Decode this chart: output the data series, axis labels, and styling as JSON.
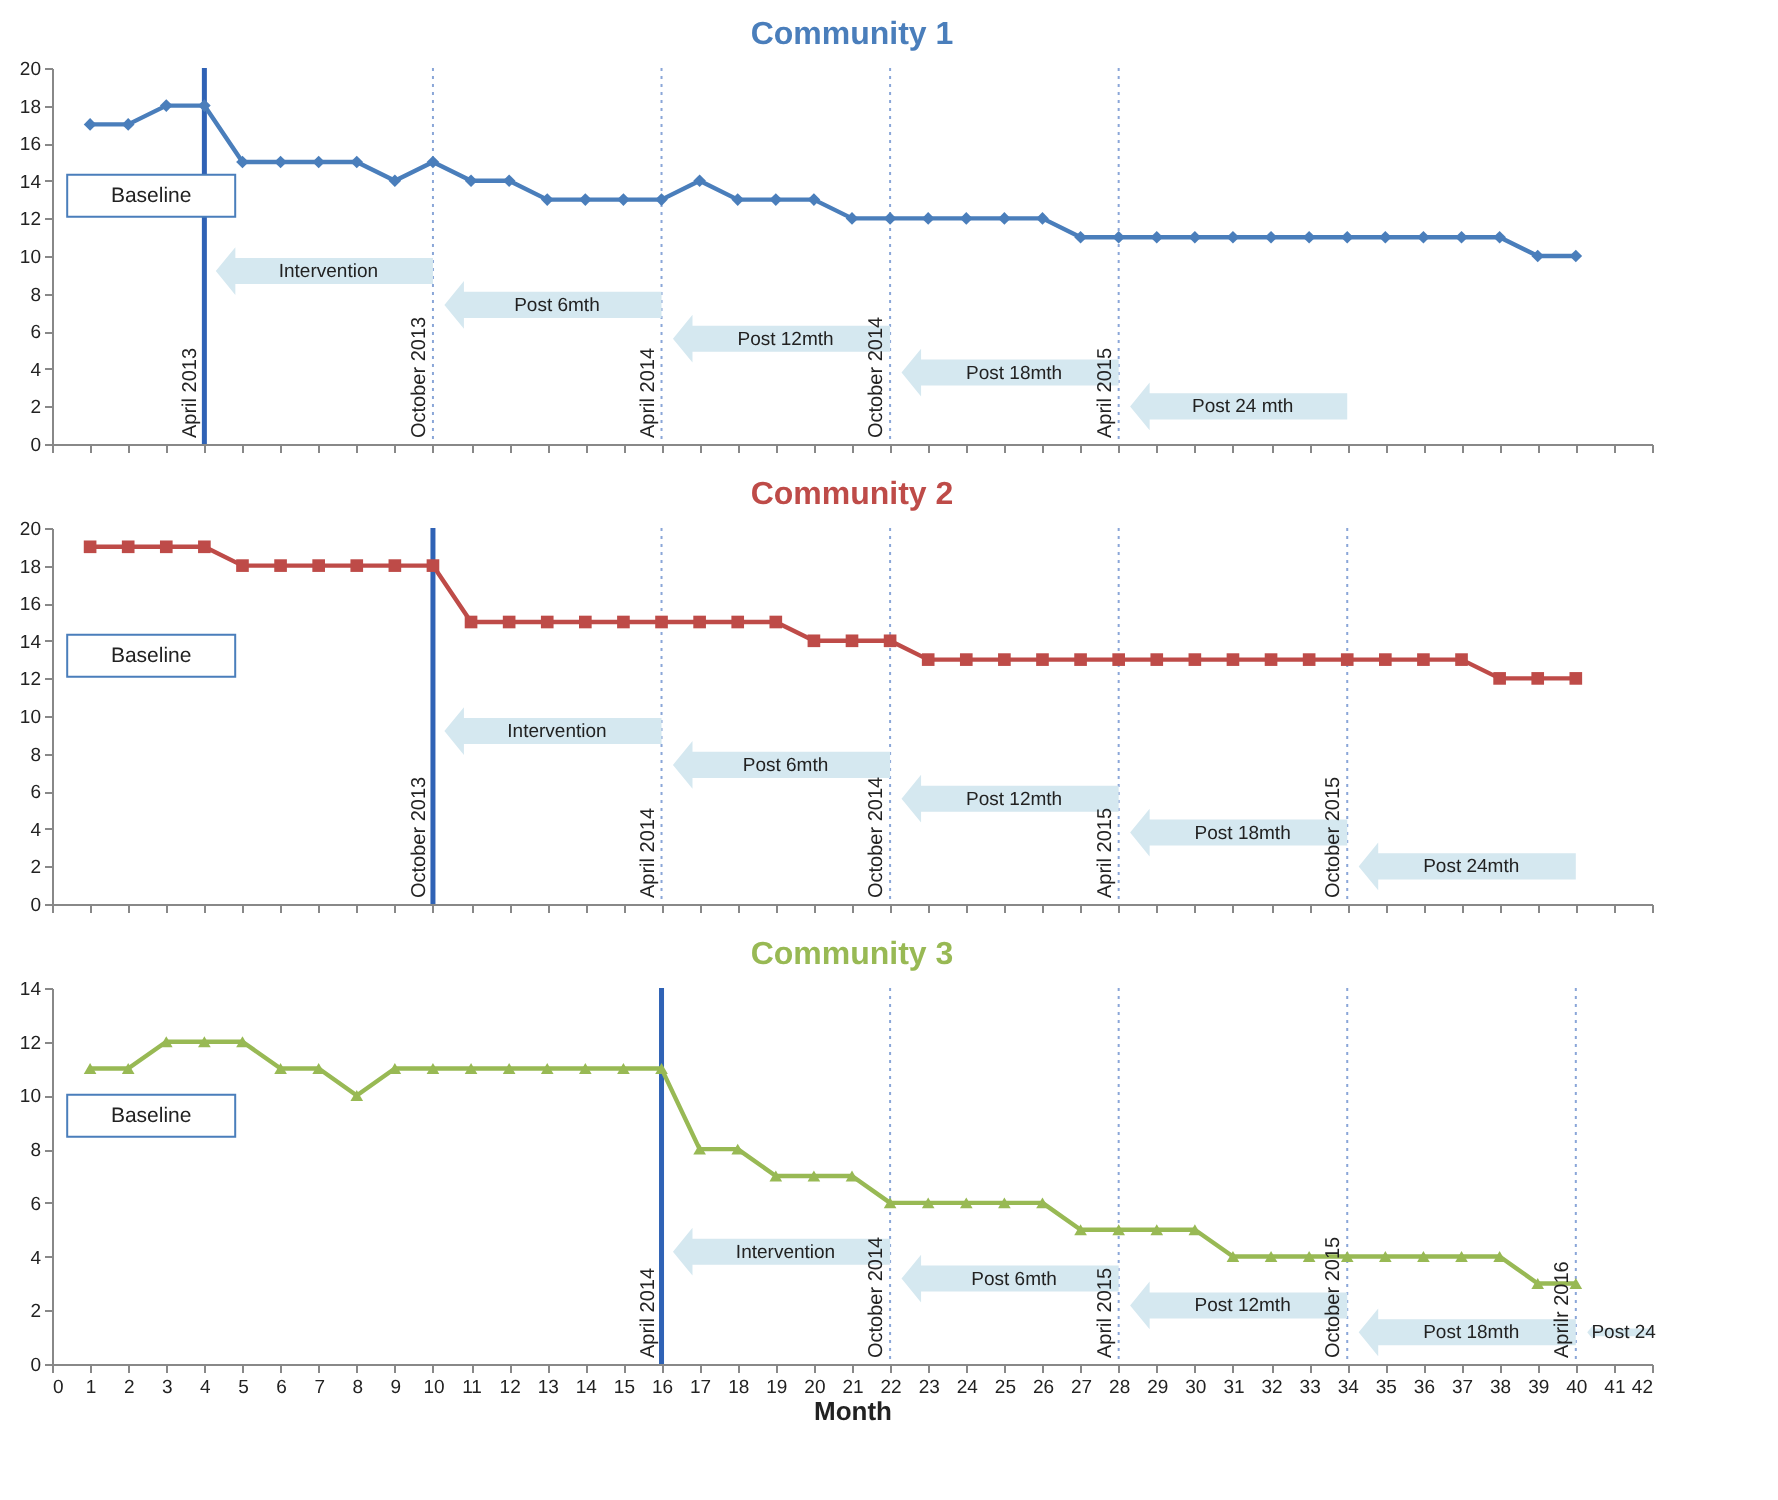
{
  "chart_data": [
    {
      "type": "line",
      "title": "Community 1",
      "marker": "diamond",
      "line_style": "solid",
      "tick_labels": "y",
      "x": [
        1,
        2,
        3,
        4,
        5,
        6,
        7,
        8,
        9,
        10,
        11,
        12,
        13,
        14,
        15,
        16,
        17,
        18,
        19,
        20,
        21,
        22,
        23,
        24,
        25,
        26,
        27,
        28,
        29,
        30,
        31,
        32,
        33,
        34,
        35,
        36,
        37,
        38,
        39,
        40
      ],
      "series": [
        {
          "color": "#4a7ebb",
          "values": [
            17,
            17,
            18,
            18,
            15,
            15,
            15,
            15,
            14,
            15,
            14,
            14,
            13,
            13,
            13,
            13,
            14,
            13,
            13,
            13,
            12,
            12,
            12,
            12,
            12,
            12,
            11,
            11,
            11,
            11,
            11,
            11,
            11,
            11,
            11,
            11,
            11,
            11,
            10,
            10
          ]
        }
      ],
      "xlim": [
        0,
        42
      ],
      "xticks": [
        0,
        1,
        2,
        3,
        4,
        5,
        6,
        7,
        8,
        9,
        10,
        11,
        12,
        13,
        14,
        15,
        16,
        17,
        18,
        19,
        20,
        21,
        22,
        23,
        24,
        25,
        26,
        27,
        28,
        29,
        30,
        31,
        32,
        33,
        34,
        35,
        36,
        37,
        38,
        39,
        40,
        41,
        42
      ],
      "ylim": [
        0,
        20
      ],
      "yticks": [
        0,
        2,
        4,
        6,
        8,
        10,
        12,
        14,
        16,
        18,
        20
      ],
      "ref_lines": [
        {
          "axis": "x",
          "value": 4,
          "label": "April 2013",
          "color": "#2f62b5",
          "line_style": "solid"
        },
        {
          "axis": "x",
          "value": 10,
          "label": "October 2013",
          "color": "#8aa6d8",
          "line_style": "dotted"
        },
        {
          "axis": "x",
          "value": 16,
          "label": "April 2014",
          "color": "#8aa6d8",
          "line_style": "dotted"
        },
        {
          "axis": "x",
          "value": 22,
          "label": "October 2014",
          "color": "#8aa6d8",
          "line_style": "dotted"
        },
        {
          "axis": "x",
          "value": 28,
          "label": "April 2015",
          "color": "#8aa6d8",
          "line_style": "dotted"
        }
      ],
      "annotations": [
        "Baseline",
        "Intervention",
        "Post 6mth",
        "Post 12mth",
        "Post 18mth",
        "Post 24 mth"
      ]
    },
    {
      "type": "line",
      "title": "Community 2",
      "marker": "square",
      "line_style": "solid",
      "tick_labels": "y",
      "x": [
        1,
        2,
        3,
        4,
        5,
        6,
        7,
        8,
        9,
        10,
        11,
        12,
        13,
        14,
        15,
        16,
        17,
        18,
        19,
        20,
        21,
        22,
        23,
        24,
        25,
        26,
        27,
        28,
        29,
        30,
        31,
        32,
        33,
        34,
        35,
        36,
        37,
        38,
        39,
        40
      ],
      "series": [
        {
          "color": "#be4b48",
          "values": [
            19,
            19,
            19,
            19,
            18,
            18,
            18,
            18,
            18,
            18,
            15,
            15,
            15,
            15,
            15,
            15,
            15,
            15,
            15,
            14,
            14,
            14,
            13,
            13,
            13,
            13,
            13,
            13,
            13,
            13,
            13,
            13,
            13,
            13,
            13,
            13,
            13,
            12,
            12,
            12
          ]
        }
      ],
      "xlim": [
        0,
        42
      ],
      "xticks": [
        0,
        1,
        2,
        3,
        4,
        5,
        6,
        7,
        8,
        9,
        10,
        11,
        12,
        13,
        14,
        15,
        16,
        17,
        18,
        19,
        20,
        21,
        22,
        23,
        24,
        25,
        26,
        27,
        28,
        29,
        30,
        31,
        32,
        33,
        34,
        35,
        36,
        37,
        38,
        39,
        40,
        41,
        42
      ],
      "ylim": [
        0,
        20
      ],
      "yticks": [
        0,
        2,
        4,
        6,
        8,
        10,
        12,
        14,
        16,
        18,
        20
      ],
      "ref_lines": [
        {
          "axis": "x",
          "value": 10,
          "label": "October 2013",
          "color": "#2f62b5",
          "line_style": "solid"
        },
        {
          "axis": "x",
          "value": 16,
          "label": "April 2014",
          "color": "#8aa6d8",
          "line_style": "dotted"
        },
        {
          "axis": "x",
          "value": 22,
          "label": "October 2014",
          "color": "#8aa6d8",
          "line_style": "dotted"
        },
        {
          "axis": "x",
          "value": 28,
          "label": "April 2015",
          "color": "#8aa6d8",
          "line_style": "dotted"
        },
        {
          "axis": "x",
          "value": 34,
          "label": "October 2015",
          "color": "#8aa6d8",
          "line_style": "dotted"
        }
      ],
      "annotations": [
        "Baseline",
        "Intervention",
        "Post 6mth",
        "Post 12mth",
        "Post 18mth",
        "Post 24mth"
      ]
    },
    {
      "type": "line",
      "title": "Community 3",
      "xlabel": "Month",
      "marker": "triangle",
      "line_style": "solid",
      "x": [
        1,
        2,
        3,
        4,
        5,
        6,
        7,
        8,
        9,
        10,
        11,
        12,
        13,
        14,
        15,
        16,
        17,
        18,
        19,
        20,
        21,
        22,
        23,
        24,
        25,
        26,
        27,
        28,
        29,
        30,
        31,
        32,
        33,
        34,
        35,
        36,
        37,
        38,
        39,
        40
      ],
      "series": [
        {
          "color": "#98b954",
          "values": [
            11,
            11,
            12,
            12,
            12,
            11,
            11,
            10,
            11,
            11,
            11,
            11,
            11,
            11,
            11,
            11,
            8,
            8,
            7,
            7,
            7,
            6,
            6,
            6,
            6,
            6,
            5,
            5,
            5,
            5,
            4,
            4,
            4,
            4,
            4,
            4,
            4,
            4,
            3,
            3
          ]
        }
      ],
      "xlim": [
        0,
        42
      ],
      "xticks": [
        0,
        1,
        2,
        3,
        4,
        5,
        6,
        7,
        8,
        9,
        10,
        11,
        12,
        13,
        14,
        15,
        16,
        17,
        18,
        19,
        20,
        21,
        22,
        23,
        24,
        25,
        26,
        27,
        28,
        29,
        30,
        31,
        32,
        33,
        34,
        35,
        36,
        37,
        38,
        39,
        40,
        41,
        42
      ],
      "ylim": [
        0,
        14
      ],
      "yticks": [
        0,
        2,
        4,
        6,
        8,
        10,
        12,
        14
      ],
      "ref_lines": [
        {
          "axis": "x",
          "value": 16,
          "label": "April 2014",
          "color": "#2f62b5",
          "line_style": "solid"
        },
        {
          "axis": "x",
          "value": 22,
          "label": "October 2014",
          "color": "#8aa6d8",
          "line_style": "dotted"
        },
        {
          "axis": "x",
          "value": 28,
          "label": "April 2015",
          "color": "#8aa6d8",
          "line_style": "dotted"
        },
        {
          "axis": "x",
          "value": 34,
          "label": "October 2015",
          "color": "#8aa6d8",
          "line_style": "dotted"
        },
        {
          "axis": "x",
          "value": 40,
          "label": "Aprilr 2016",
          "color": "#8aa6d8",
          "line_style": "dotted"
        }
      ],
      "annotations": [
        "Baseline",
        "Intervention",
        "Post 6mth",
        "Post 12mth",
        "Post 18mth",
        "Post 24"
      ]
    }
  ]
}
